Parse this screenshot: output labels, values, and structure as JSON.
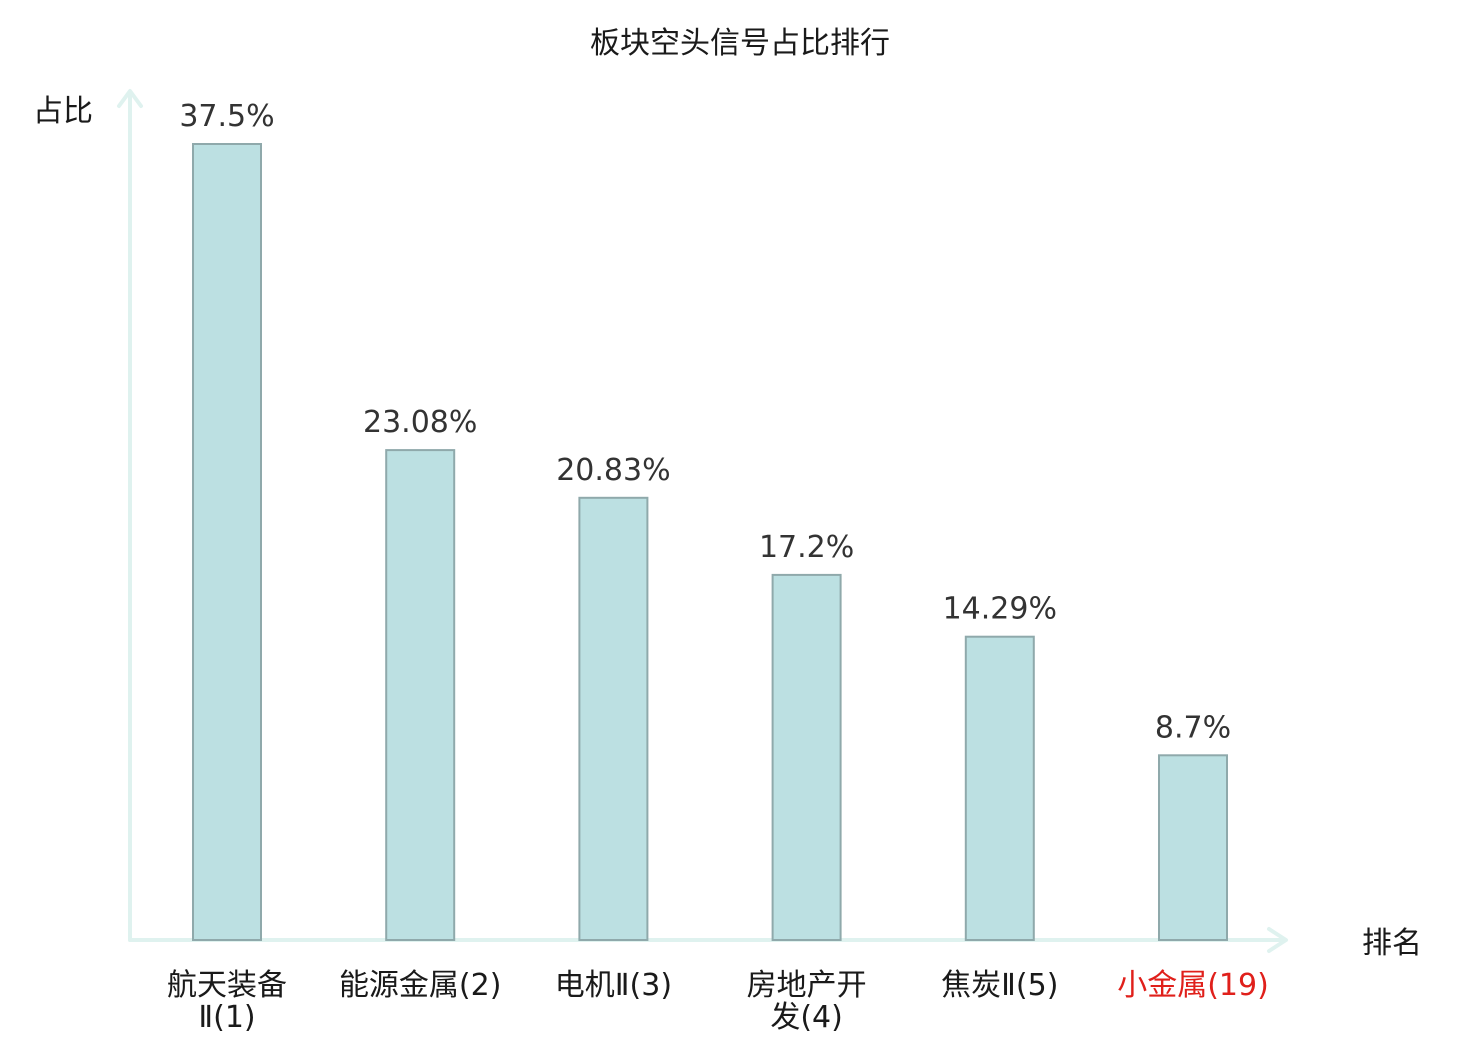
{
  "chart_data": {
    "type": "bar",
    "title": "板块空头信号占比排行",
    "ylabel": "占比",
    "xlabel": "排名",
    "ylim": [
      0,
      40
    ],
    "categories": [
      {
        "name": "航天装备Ⅱ",
        "rank": "(1)",
        "lines": [
          "航天装备",
          "Ⅱ(1)"
        ],
        "highlight": false
      },
      {
        "name": "能源金属",
        "rank": "(2)",
        "lines": [
          "能源金属(2)"
        ],
        "highlight": false
      },
      {
        "name": "电机Ⅱ",
        "rank": "(3)",
        "lines": [
          "电机Ⅱ(3)"
        ],
        "highlight": false
      },
      {
        "name": "房地产开发",
        "rank": "(4)",
        "lines": [
          "房地产开",
          "发(4)"
        ],
        "highlight": false
      },
      {
        "name": "焦炭Ⅱ",
        "rank": "(5)",
        "lines": [
          "焦炭Ⅱ(5)"
        ],
        "highlight": false
      },
      {
        "name": "小金属",
        "rank": "(19)",
        "lines": [
          "小金属(19)"
        ],
        "highlight": true
      }
    ],
    "values": [
      37.5,
      23.08,
      20.83,
      17.2,
      14.29,
      8.7
    ],
    "value_labels": [
      "37.5%",
      "23.08%",
      "20.83%",
      "17.2%",
      "14.29%",
      "8.7%"
    ],
    "grid": false,
    "legend": "none",
    "colors": {
      "bar_fill": "#bce0e2",
      "bar_stroke": "#8fa9ab",
      "axis": "#dff2ef",
      "highlight_label": "#e0201b",
      "text": "#1a1a1a",
      "value_text": "#333333"
    }
  }
}
